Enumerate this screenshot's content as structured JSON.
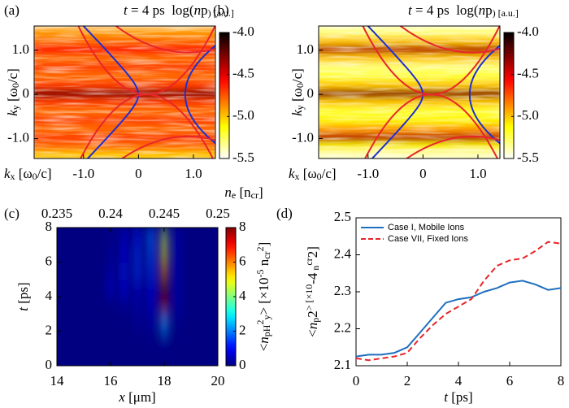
{
  "chart_data": [
    {
      "type": "profile-heatmap",
      "panel_label": "(a)",
      "title": [
        "t",
        " = 4 ps  log(",
        "n",
        "p",
        ") [a.u.]"
      ],
      "xlabel": [
        "k",
        "x",
        " [ω",
        "0",
        "/c]"
      ],
      "ylabel": [
        "k",
        "y",
        " [ω",
        "0",
        "/c]"
      ],
      "xlim": [
        -1.9,
        1.4
      ],
      "ylim": [
        -1.45,
        1.55
      ],
      "xticks": [
        {
          "value": -1,
          "label": "-1.0"
        },
        0,
        {
          "value": 1,
          "label": "1.0"
        }
      ],
      "yticks": [
        {
          "value": -1,
          "label": "-1.0"
        },
        0,
        {
          "value": 1,
          "label": "1.0"
        }
      ],
      "y": [
        1.4,
        1.2,
        1.0,
        0.8,
        0.6,
        0.4,
        0.2,
        0,
        -0.2,
        -0.4,
        -0.6,
        -0.8,
        -1.0,
        -1.2,
        -1.4
      ],
      "values": [
        -4.9,
        -4.8,
        -4.6,
        -4.8,
        -4.7,
        -4.8,
        -4.7,
        -4.3,
        -4.7,
        -4.8,
        -4.7,
        -4.8,
        -4.7,
        -4.8,
        -5.0
      ],
      "colormap": "hot_r",
      "clim": [
        -5.5,
        -4.0
      ],
      "cticks": [
        -5.5,
        {
          "value": -5,
          "label": "-5.0"
        },
        -4.5,
        {
          "value": -4,
          "label": "-4.0"
        }
      ]
    },
    {
      "type": "profile-heatmap",
      "panel_label": "(b)",
      "title": [
        "t",
        " = 4 ps  log(",
        "n",
        "p",
        ") [a.u.]"
      ],
      "xlabel": [
        "k",
        "x",
        " [ω",
        "0",
        "/c]"
      ],
      "ylabel": [
        "k",
        "y",
        " [ω",
        "0",
        "/c]"
      ],
      "xlim": [
        -1.9,
        1.4
      ],
      "ylim": [
        -1.45,
        1.55
      ],
      "xticks": [
        {
          "value": -1,
          "label": "-1.0"
        },
        0,
        {
          "value": 1,
          "label": "1.0"
        }
      ],
      "yticks": [
        {
          "value": -1,
          "label": "-1.0"
        },
        0,
        {
          "value": 1,
          "label": "1.0"
        }
      ],
      "y": [
        1.4,
        1.2,
        1.0,
        0.8,
        0.6,
        0.4,
        0.2,
        0,
        -0.2,
        -0.4,
        -0.6,
        -0.8,
        -1.0,
        -1.2,
        -1.4
      ],
      "values": [
        -5.3,
        -5.0,
        -4.4,
        -5.0,
        -5.3,
        -5.2,
        -5.0,
        -4.3,
        -5.0,
        -5.2,
        -5.1,
        -4.9,
        -4.4,
        -5.1,
        -5.4
      ],
      "colormap": "hot_r",
      "clim": [
        -5.5,
        -4.0
      ],
      "cticks": [
        -5.5,
        {
          "value": -5,
          "label": "-5.0"
        },
        -4.5,
        {
          "value": -4,
          "label": "-4.0"
        }
      ]
    },
    {
      "type": "heatmap",
      "panel_label": "(c)",
      "xlabel": [
        "x",
        " [μm]"
      ],
      "ylabel": [
        "t",
        " [ps]"
      ],
      "x2label": [
        "n",
        "e",
        " [n",
        "cr",
        "]"
      ],
      "clabel": [
        "<",
        "n",
        "pH",
        "2",
        "y",
        "> [×10",
        "-5",
        " n",
        "cr",
        "2",
        "]"
      ],
      "xlim": [
        14,
        20
      ],
      "ylim": [
        0,
        8
      ],
      "xticks": [
        14,
        16,
        18,
        20
      ],
      "yticks": [
        0,
        2,
        4,
        6,
        8
      ],
      "x2lim": [
        0.235,
        0.25
      ],
      "x2ticks": [
        0.235,
        0.24,
        0.245,
        0.25
      ],
      "x": [
        15.5,
        16,
        16.5,
        17,
        17.5,
        18,
        18.5
      ],
      "y": [
        0.5,
        1.5,
        2.5,
        3.5,
        4.5,
        5.5,
        6.5,
        7.5
      ],
      "z": [
        [
          0,
          0,
          0,
          0,
          0,
          0,
          0
        ],
        [
          0,
          0,
          0,
          0,
          0,
          0.3,
          0
        ],
        [
          0,
          0,
          0,
          0.3,
          0.5,
          2.5,
          0.2
        ],
        [
          0,
          0,
          0.3,
          0.5,
          0.8,
          7.5,
          0.5
        ],
        [
          0,
          0.8,
          1,
          0.8,
          1,
          8,
          0.5
        ],
        [
          0,
          0.5,
          1.2,
          1.5,
          1.5,
          6,
          0.5
        ],
        [
          0,
          0.3,
          1,
          1.5,
          1.8,
          5,
          0.5
        ],
        [
          0,
          0.2,
          0.8,
          1.2,
          2,
          4.5,
          0.5
        ]
      ],
      "colormap": "jet",
      "clim": [
        0,
        8
      ],
      "cticks": [
        0,
        2,
        4,
        6,
        8
      ]
    },
    {
      "type": "line",
      "panel_label": "(d)",
      "xlabel": [
        "t",
        " [ps]"
      ],
      "ylabel": [
        "<",
        "n",
        "p",
        "2",
        "> [×10",
        "-4",
        " n",
        "cr",
        "2",
        "]"
      ],
      "xlim": [
        0,
        8
      ],
      "ylim": [
        2.1,
        2.5
      ],
      "xticks": [
        0,
        2,
        4,
        6,
        8
      ],
      "yticks": [
        2.1,
        2.2,
        2.3,
        2.4,
        2.5
      ],
      "x": [
        0,
        0.5,
        1,
        1.5,
        2,
        2.5,
        3,
        3.5,
        4,
        4.5,
        5,
        5.5,
        6,
        6.5,
        7,
        7.5,
        8
      ],
      "series": [
        {
          "name": "Case I, Mobile Ions",
          "color": "#1f6fc0",
          "line_style": "solid",
          "values": [
            2.125,
            2.13,
            2.13,
            2.135,
            2.15,
            2.19,
            2.23,
            2.27,
            2.28,
            2.285,
            2.3,
            2.31,
            2.325,
            2.33,
            2.32,
            2.305,
            2.31
          ]
        },
        {
          "name": "Case VII, Fixed Ions",
          "color": "#e8262a",
          "line_style": "dashed",
          "values": [
            2.12,
            2.115,
            2.12,
            2.125,
            2.135,
            2.175,
            2.21,
            2.24,
            2.26,
            2.28,
            2.33,
            2.37,
            2.385,
            2.39,
            2.41,
            2.435,
            2.43
          ]
        }
      ],
      "legend": "upper left"
    }
  ]
}
